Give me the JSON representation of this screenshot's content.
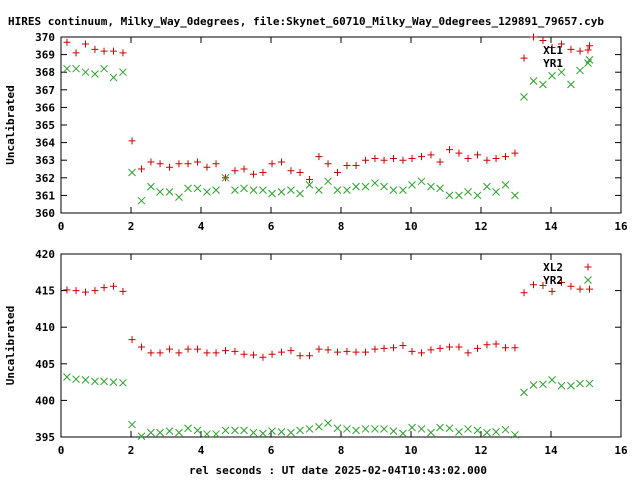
{
  "figure": {
    "title": "HIRES continuum, Milky_Way_0degrees, file:Skynet_60710_Milky_Way_0degrees_129891_79657.cyb",
    "xlabel": "rel seconds : UT date 2025-02-04T10:43:02.000"
  },
  "colors": {
    "XL": "#cc0000",
    "YR": "#2ca02c",
    "frame": "#000000"
  },
  "chart_data": [
    {
      "type": "scatter",
      "ylabel": "Uncalibrated",
      "xlim": [
        0,
        16
      ],
      "ylim": [
        360,
        370
      ],
      "xticks": [
        "0",
        "2",
        "4",
        "6",
        "8",
        "10",
        "12",
        "14",
        "16"
      ],
      "yticks": [
        "360",
        "361",
        "362",
        "363",
        "364",
        "365",
        "366",
        "367",
        "368",
        "369",
        "370"
      ],
      "legend_position": "top-right",
      "x": [
        0.17,
        0.43,
        0.7,
        0.97,
        1.23,
        1.5,
        1.77,
        2.03,
        2.3,
        2.57,
        2.83,
        3.1,
        3.37,
        3.63,
        3.9,
        4.17,
        4.43,
        4.7,
        4.97,
        5.23,
        5.5,
        5.77,
        6.03,
        6.3,
        6.57,
        6.83,
        7.1,
        7.37,
        7.63,
        7.9,
        8.17,
        8.43,
        8.7,
        8.97,
        9.23,
        9.5,
        9.77,
        10.03,
        10.3,
        10.57,
        10.83,
        11.1,
        11.37,
        11.63,
        11.9,
        12.17,
        12.43,
        12.7,
        12.97,
        13.23,
        13.5,
        13.77,
        14.03,
        14.3,
        14.57,
        14.83,
        15.1
      ],
      "series": [
        {
          "name": "XL1",
          "marker": "+",
          "y": [
            369.7,
            369.1,
            369.6,
            369.3,
            369.2,
            369.2,
            369.1,
            364.1,
            362.5,
            362.9,
            362.8,
            362.6,
            362.8,
            362.8,
            362.9,
            362.6,
            362.8,
            362.0,
            362.4,
            362.5,
            362.2,
            362.3,
            362.8,
            362.9,
            362.4,
            362.3,
            361.9,
            363.2,
            362.8,
            362.3,
            362.7,
            362.7,
            363.0,
            363.1,
            363.0,
            363.1,
            363.0,
            363.1,
            363.2,
            363.3,
            362.9,
            363.6,
            363.4,
            363.1,
            363.3,
            363.0,
            363.1,
            363.2,
            363.4,
            368.8,
            370.0,
            369.8,
            369.4,
            369.6,
            369.3,
            369.2,
            369.5
          ]
        },
        {
          "name": "YR1",
          "marker": "x",
          "y": [
            368.2,
            368.2,
            368.0,
            367.9,
            368.2,
            367.7,
            368.0,
            362.3,
            360.7,
            361.5,
            361.2,
            361.2,
            360.9,
            361.4,
            361.4,
            361.2,
            361.3,
            362.0,
            361.3,
            361.4,
            361.3,
            361.3,
            361.1,
            361.2,
            361.3,
            361.1,
            361.6,
            361.3,
            361.8,
            361.3,
            361.3,
            361.5,
            361.5,
            361.7,
            361.5,
            361.3,
            361.3,
            361.6,
            361.8,
            361.5,
            361.4,
            361.0,
            361.0,
            361.2,
            361.0,
            361.5,
            361.2,
            361.6,
            361.0,
            366.6,
            367.5,
            367.3,
            367.8,
            368.0,
            367.3,
            368.1,
            368.7
          ]
        }
      ]
    },
    {
      "type": "scatter",
      "ylabel": "Uncalibrated",
      "xlim": [
        0,
        16
      ],
      "ylim": [
        395,
        420
      ],
      "xticks": [
        "0",
        "2",
        "4",
        "6",
        "8",
        "10",
        "12",
        "14",
        "16"
      ],
      "yticks": [
        "395",
        "400",
        "405",
        "410",
        "415",
        "420"
      ],
      "legend_position": "top-right",
      "x": [
        0.17,
        0.43,
        0.7,
        0.97,
        1.23,
        1.5,
        1.77,
        2.03,
        2.3,
        2.57,
        2.83,
        3.1,
        3.37,
        3.63,
        3.9,
        4.17,
        4.43,
        4.7,
        4.97,
        5.23,
        5.5,
        5.77,
        6.03,
        6.3,
        6.57,
        6.83,
        7.1,
        7.37,
        7.63,
        7.9,
        8.17,
        8.43,
        8.7,
        8.97,
        9.23,
        9.5,
        9.77,
        10.03,
        10.3,
        10.57,
        10.83,
        11.1,
        11.37,
        11.63,
        11.9,
        12.17,
        12.43,
        12.7,
        12.97,
        13.23,
        13.5,
        13.77,
        14.03,
        14.3,
        14.57,
        14.83,
        15.1
      ],
      "series": [
        {
          "name": "XL2",
          "marker": "+",
          "y": [
            415.1,
            415.0,
            414.8,
            415.0,
            415.4,
            415.6,
            414.9,
            408.3,
            407.3,
            406.5,
            406.5,
            407.0,
            406.5,
            407.0,
            407.0,
            406.5,
            406.5,
            406.8,
            406.7,
            406.3,
            406.2,
            405.9,
            406.3,
            406.6,
            406.8,
            406.1,
            406.1,
            407.0,
            406.9,
            406.6,
            406.7,
            406.6,
            406.6,
            407.0,
            407.1,
            407.2,
            407.5,
            406.7,
            406.5,
            406.9,
            407.1,
            407.3,
            407.3,
            406.5,
            407.1,
            407.6,
            407.7,
            407.2,
            407.2,
            414.7,
            415.8,
            415.7,
            414.9,
            416.1,
            415.6,
            415.2,
            415.2
          ]
        },
        {
          "name": "YR2",
          "marker": "x",
          "y": [
            403.2,
            402.9,
            402.8,
            402.6,
            402.6,
            402.5,
            402.4,
            396.7,
            395.1,
            395.6,
            395.6,
            395.8,
            395.6,
            396.2,
            395.9,
            395.4,
            395.4,
            395.9,
            395.9,
            395.9,
            395.6,
            395.5,
            395.8,
            395.7,
            395.6,
            395.9,
            396.1,
            396.4,
            396.9,
            396.2,
            396.1,
            395.9,
            396.1,
            396.1,
            396.1,
            395.8,
            395.5,
            396.3,
            396.1,
            395.6,
            396.3,
            396.2,
            395.7,
            396.1,
            395.9,
            395.6,
            395.7,
            396.0,
            395.3,
            401.1,
            402.1,
            402.2,
            402.8,
            402.0,
            402.0,
            402.3,
            402.3
          ]
        }
      ]
    }
  ]
}
